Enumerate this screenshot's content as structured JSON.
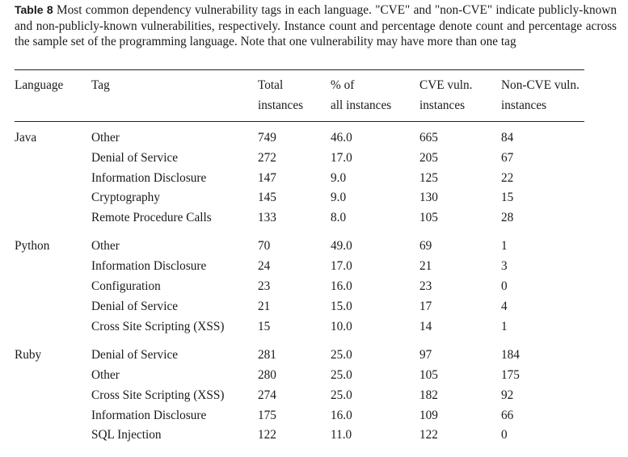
{
  "caption": {
    "label": "Table 8",
    "text": "Most common dependency vulnerability tags in each language. \"CVE\" and \"non-CVE\" indicate publicly-known and non-publicly-known vulnerabilities, respectively. Instance count and percentage denote count and percentage across the sample set of the programming language. Note that one vulnerability may have more than one tag"
  },
  "headers": {
    "language": "Language",
    "tag": "Tag",
    "total_1": "Total",
    "total_2": "instances",
    "pct_1": "% of",
    "pct_2": "all instances",
    "cve_1": "CVE vuln.",
    "cve_2": "instances",
    "noncve_1": "Non-CVE vuln.",
    "noncve_2": "instances"
  },
  "groups": [
    {
      "language": "Java",
      "rows": [
        {
          "tag": "Other",
          "total": "749",
          "pct": "46.0",
          "cve": "665",
          "noncve": "84"
        },
        {
          "tag": "Denial of Service",
          "total": "272",
          "pct": "17.0",
          "cve": "205",
          "noncve": "67"
        },
        {
          "tag": "Information Disclosure",
          "total": "147",
          "pct": "9.0",
          "cve": "125",
          "noncve": "22"
        },
        {
          "tag": "Cryptography",
          "total": "145",
          "pct": "9.0",
          "cve": "130",
          "noncve": "15"
        },
        {
          "tag": "Remote Procedure Calls",
          "total": "133",
          "pct": "8.0",
          "cve": "105",
          "noncve": "28"
        }
      ]
    },
    {
      "language": "Python",
      "rows": [
        {
          "tag": "Other",
          "total": "70",
          "pct": "49.0",
          "cve": "69",
          "noncve": "1"
        },
        {
          "tag": "Information Disclosure",
          "total": "24",
          "pct": "17.0",
          "cve": "21",
          "noncve": "3"
        },
        {
          "tag": "Configuration",
          "total": "23",
          "pct": "16.0",
          "cve": "23",
          "noncve": "0"
        },
        {
          "tag": "Denial of Service",
          "total": "21",
          "pct": "15.0",
          "cve": "17",
          "noncve": "4"
        },
        {
          "tag": "Cross Site Scripting (XSS)",
          "total": "15",
          "pct": "10.0",
          "cve": "14",
          "noncve": "1"
        }
      ]
    },
    {
      "language": "Ruby",
      "rows": [
        {
          "tag": "Denial of Service",
          "total": "281",
          "pct": "25.0",
          "cve": "97",
          "noncve": "184"
        },
        {
          "tag": "Other",
          "total": "280",
          "pct": "25.0",
          "cve": "105",
          "noncve": "175"
        },
        {
          "tag": "Cross Site Scripting (XSS)",
          "total": "274",
          "pct": "25.0",
          "cve": "182",
          "noncve": "92"
        },
        {
          "tag": "Information Disclosure",
          "total": "175",
          "pct": "16.0",
          "cve": "109",
          "noncve": "66"
        },
        {
          "tag": "SQL Injection",
          "total": "122",
          "pct": "11.0",
          "cve": "122",
          "noncve": "0"
        }
      ]
    }
  ]
}
